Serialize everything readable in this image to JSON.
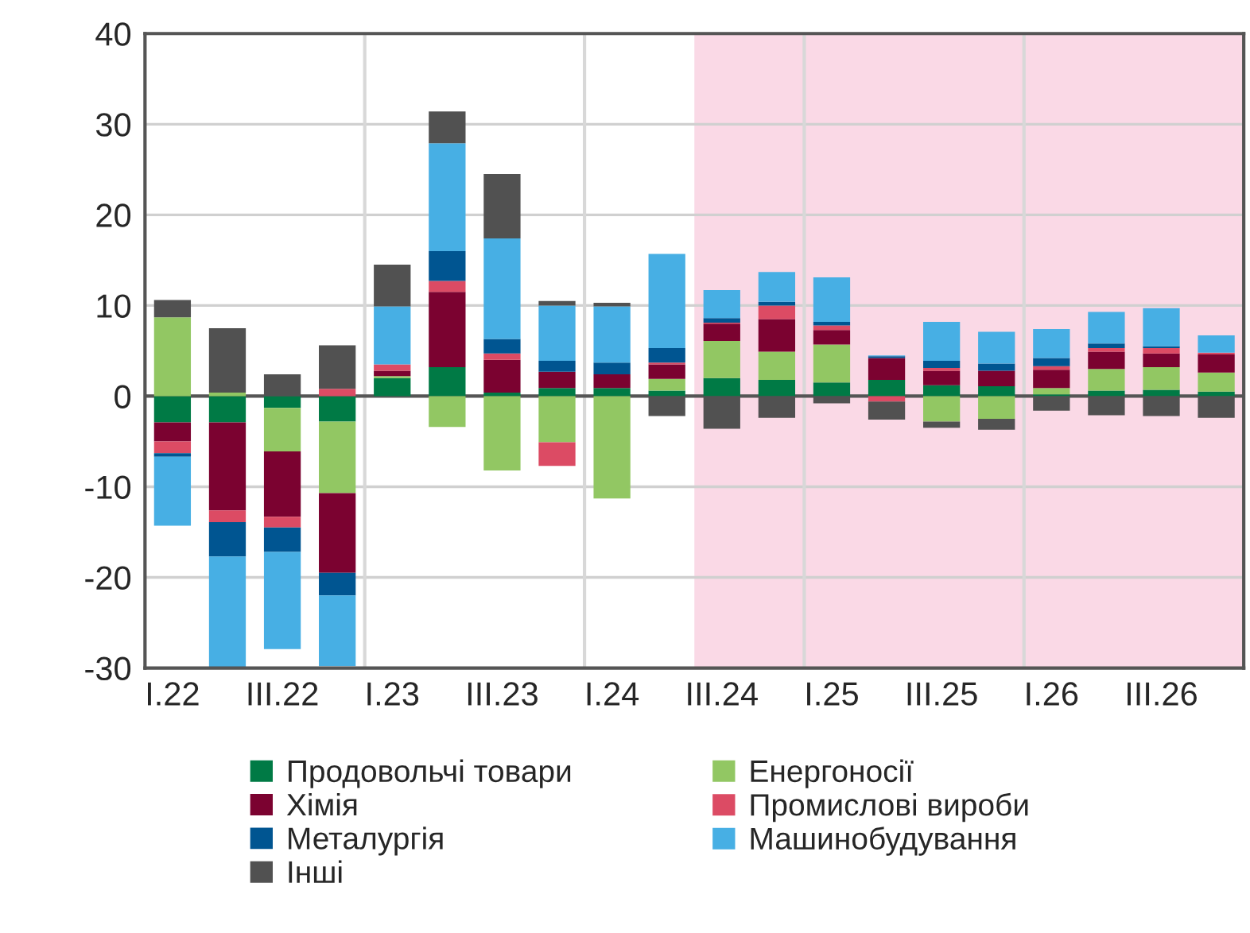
{
  "chart_data": {
    "type": "bar",
    "stacked": true,
    "categories": [
      "I.22",
      null,
      "III.22",
      null,
      "I.23",
      null,
      "III.23",
      null,
      "I.24",
      null,
      "III.24",
      null,
      "I.25",
      null,
      "III.25",
      null,
      "I.26",
      null,
      "III.26",
      null
    ],
    "series": [
      {
        "name": "Продовольчі товари",
        "color": "#007a45",
        "values": [
          -2.9,
          -2.9,
          -1.3,
          -2.8,
          2.0,
          3.2,
          0.4,
          0.9,
          0.9,
          0.6,
          2.0,
          1.8,
          1.5,
          1.8,
          1.2,
          1.1,
          0.2,
          0.6,
          0.7,
          0.5
        ]
      },
      {
        "name": "Енергоносії",
        "color": "#92c763",
        "values": [
          8.7,
          0.4,
          -4.8,
          -7.9,
          0.2,
          -3.4,
          -8.2,
          -5.1,
          -11.3,
          1.3,
          4.1,
          3.1,
          4.2,
          0,
          -2.8,
          -2.5,
          0.7,
          2.4,
          2.5,
          2.1
        ]
      },
      {
        "name": "Хімія",
        "color": "#7b0230",
        "values": [
          -2.1,
          -9.7,
          -7.2,
          -8.8,
          0.6,
          8.3,
          3.6,
          1.8,
          1.5,
          1.6,
          1.9,
          3.6,
          1.6,
          2.4,
          1.6,
          1.7,
          2.0,
          1.9,
          1.5,
          2.0
        ]
      },
      {
        "name": "Промислові вироби",
        "color": "#dc4b64",
        "values": [
          -1.3,
          -1.3,
          -1.2,
          0.8,
          0.7,
          1.2,
          0.7,
          -2.6,
          0,
          0.2,
          0.1,
          1.5,
          0.5,
          -0.6,
          0.3,
          0,
          0.4,
          0.4,
          0.6,
          0.2
        ]
      },
      {
        "name": "Металургія",
        "color": "#005591",
        "values": [
          -0.4,
          -3.8,
          -2.7,
          -2.5,
          0,
          3.3,
          1.6,
          1.2,
          1.3,
          1.6,
          0.5,
          0.4,
          0.4,
          0.2,
          0.8,
          0.8,
          0.9,
          0.5,
          0.2,
          0
        ]
      },
      {
        "name": "Машинобудування",
        "color": "#47afe4",
        "values": [
          -7.6,
          -12.3,
          -10.7,
          -7.8,
          6.4,
          11.9,
          11.1,
          6.1,
          6.2,
          10.4,
          3.1,
          3.3,
          4.9,
          0.1,
          4.3,
          3.5,
          3.2,
          3.5,
          4.2,
          1.9
        ]
      },
      {
        "name": "Інші",
        "color": "#515151",
        "values": [
          1.9,
          7.1,
          2.4,
          4.8,
          4.6,
          3.5,
          7.1,
          0.5,
          0.4,
          -2.2,
          -3.6,
          -2.4,
          -0.8,
          -2.0,
          -0.7,
          -1.2,
          -1.6,
          -2.1,
          -2.2,
          -2.4
        ]
      }
    ],
    "ylim": [
      -30,
      40
    ],
    "yticks": [
      -30,
      -20,
      -10,
      0,
      10,
      20,
      30,
      40
    ],
    "grid": true,
    "legend": "bottom",
    "ref_lines": [
      {
        "axis": "y",
        "value": 0,
        "color": "#555555"
      }
    ]
  }
}
